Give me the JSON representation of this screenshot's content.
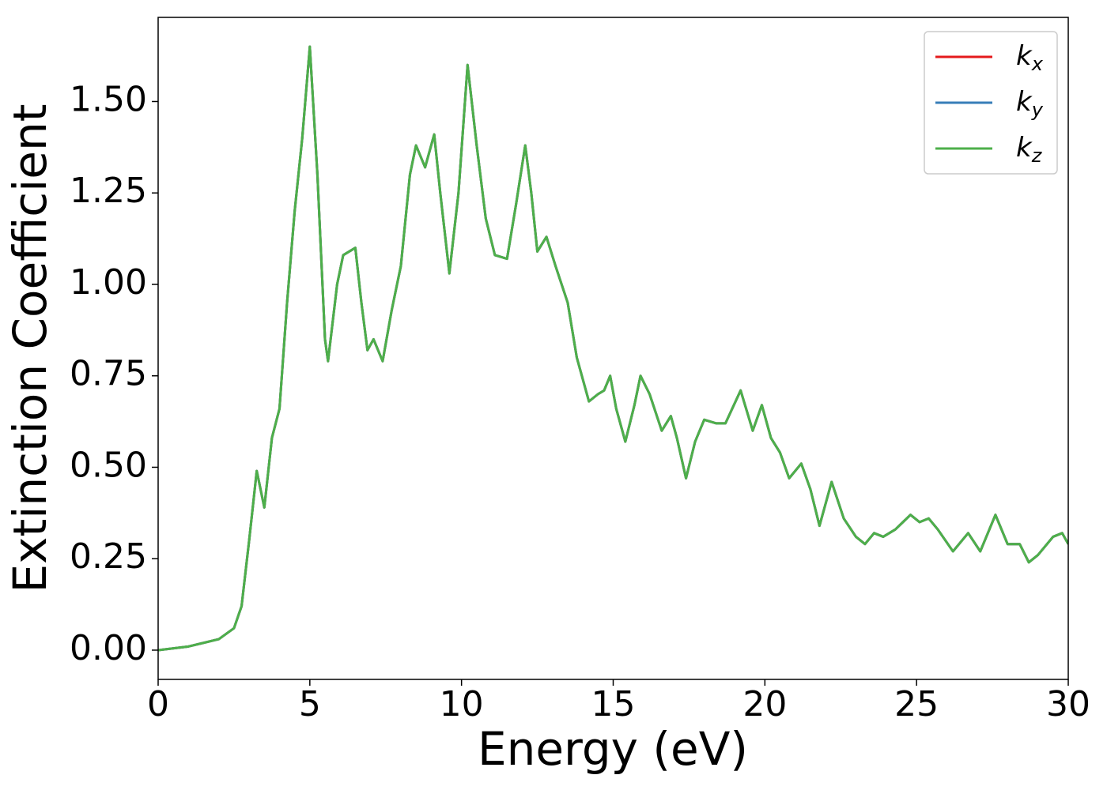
{
  "chart_data": {
    "type": "line",
    "xlabel": "Energy (eV)",
    "ylabel": "Extinction Coefficient",
    "x": [
      0,
      1,
      2,
      2.5,
      2.75,
      3.0,
      3.25,
      3.5,
      3.75,
      4.0,
      4.25,
      4.5,
      4.75,
      5.0,
      5.25,
      5.5,
      5.6,
      5.9,
      6.1,
      6.3,
      6.5,
      6.7,
      6.9,
      7.1,
      7.4,
      7.7,
      8.0,
      8.3,
      8.5,
      8.8,
      9.1,
      9.3,
      9.6,
      9.9,
      10.2,
      10.5,
      10.8,
      11.1,
      11.5,
      11.8,
      12.1,
      12.3,
      12.5,
      12.8,
      13.1,
      13.5,
      13.8,
      14.2,
      14.5,
      14.7,
      14.9,
      15.1,
      15.4,
      15.7,
      15.9,
      16.2,
      16.6,
      16.9,
      17.1,
      17.4,
      17.7,
      18.0,
      18.4,
      18.7,
      19.2,
      19.6,
      19.9,
      20.2,
      20.5,
      20.8,
      21.2,
      21.5,
      21.8,
      22.2,
      22.6,
      23.0,
      23.3,
      23.6,
      23.9,
      24.3,
      24.8,
      25.1,
      25.4,
      25.7,
      26.2,
      26.7,
      27.1,
      27.6,
      28.0,
      28.4,
      28.7,
      29.0,
      29.5,
      29.8,
      30.0
    ],
    "series": [
      {
        "name": "kx",
        "color": "#e41a1c",
        "values": [
          0,
          0.01,
          0.03,
          0.06,
          0.12,
          0.3,
          0.49,
          0.39,
          0.58,
          0.66,
          0.95,
          1.2,
          1.4,
          1.65,
          1.3,
          0.85,
          0.79,
          1.0,
          1.08,
          1.09,
          1.1,
          0.95,
          0.82,
          0.85,
          0.79,
          0.93,
          1.05,
          1.3,
          1.38,
          1.32,
          1.41,
          1.25,
          1.03,
          1.25,
          1.6,
          1.38,
          1.18,
          1.08,
          1.07,
          1.22,
          1.38,
          1.25,
          1.09,
          1.13,
          1.05,
          0.95,
          0.8,
          0.68,
          0.7,
          0.71,
          0.75,
          0.66,
          0.57,
          0.67,
          0.75,
          0.7,
          0.6,
          0.64,
          0.58,
          0.47,
          0.57,
          0.63,
          0.62,
          0.62,
          0.71,
          0.6,
          0.67,
          0.58,
          0.54,
          0.47,
          0.51,
          0.44,
          0.34,
          0.46,
          0.36,
          0.31,
          0.29,
          0.32,
          0.31,
          0.33,
          0.37,
          0.35,
          0.36,
          0.33,
          0.27,
          0.32,
          0.27,
          0.37,
          0.29,
          0.29,
          0.24,
          0.26,
          0.31,
          0.32,
          0.29
        ]
      },
      {
        "name": "ky",
        "color": "#377eb8",
        "values": [
          0,
          0.01,
          0.03,
          0.06,
          0.12,
          0.3,
          0.49,
          0.39,
          0.58,
          0.66,
          0.95,
          1.2,
          1.4,
          1.65,
          1.3,
          0.85,
          0.79,
          1.0,
          1.08,
          1.09,
          1.1,
          0.95,
          0.82,
          0.85,
          0.79,
          0.93,
          1.05,
          1.3,
          1.38,
          1.32,
          1.41,
          1.25,
          1.03,
          1.25,
          1.6,
          1.38,
          1.18,
          1.08,
          1.07,
          1.22,
          1.38,
          1.25,
          1.09,
          1.13,
          1.05,
          0.95,
          0.8,
          0.68,
          0.7,
          0.71,
          0.75,
          0.66,
          0.57,
          0.67,
          0.75,
          0.7,
          0.6,
          0.64,
          0.58,
          0.47,
          0.57,
          0.63,
          0.62,
          0.62,
          0.71,
          0.6,
          0.67,
          0.58,
          0.54,
          0.47,
          0.51,
          0.44,
          0.34,
          0.46,
          0.36,
          0.31,
          0.29,
          0.32,
          0.31,
          0.33,
          0.37,
          0.35,
          0.36,
          0.33,
          0.27,
          0.32,
          0.27,
          0.37,
          0.29,
          0.29,
          0.24,
          0.26,
          0.31,
          0.32,
          0.29
        ]
      },
      {
        "name": "kz",
        "color": "#4daf4a",
        "values": [
          0,
          0.01,
          0.03,
          0.06,
          0.12,
          0.3,
          0.49,
          0.39,
          0.58,
          0.66,
          0.95,
          1.2,
          1.4,
          1.65,
          1.3,
          0.85,
          0.79,
          1.0,
          1.08,
          1.09,
          1.1,
          0.95,
          0.82,
          0.85,
          0.79,
          0.93,
          1.05,
          1.3,
          1.38,
          1.32,
          1.41,
          1.25,
          1.03,
          1.25,
          1.6,
          1.38,
          1.18,
          1.08,
          1.07,
          1.22,
          1.38,
          1.25,
          1.09,
          1.13,
          1.05,
          0.95,
          0.8,
          0.68,
          0.7,
          0.71,
          0.75,
          0.66,
          0.57,
          0.67,
          0.75,
          0.7,
          0.6,
          0.64,
          0.58,
          0.47,
          0.57,
          0.63,
          0.62,
          0.62,
          0.71,
          0.6,
          0.67,
          0.58,
          0.54,
          0.47,
          0.51,
          0.44,
          0.34,
          0.46,
          0.36,
          0.31,
          0.29,
          0.32,
          0.31,
          0.33,
          0.37,
          0.35,
          0.36,
          0.33,
          0.27,
          0.32,
          0.27,
          0.37,
          0.29,
          0.29,
          0.24,
          0.26,
          0.31,
          0.32,
          0.29
        ]
      }
    ],
    "xlim": [
      0,
      30
    ],
    "xticks": [
      0,
      5,
      10,
      15,
      20,
      25,
      30
    ],
    "ylim": [
      -0.08,
      1.73
    ],
    "yticks": [
      {
        "value": 0,
        "label": "0.00"
      },
      {
        "value": 0.25,
        "label": "0.25"
      },
      {
        "value": 0.5,
        "label": "0.50"
      },
      {
        "value": 0.75,
        "label": "0.75"
      },
      {
        "value": 1.0,
        "label": "1.00"
      },
      {
        "value": 1.25,
        "label": "1.25"
      },
      {
        "value": 1.5,
        "label": "1.50"
      }
    ],
    "grid": false,
    "legend": "upper right"
  }
}
